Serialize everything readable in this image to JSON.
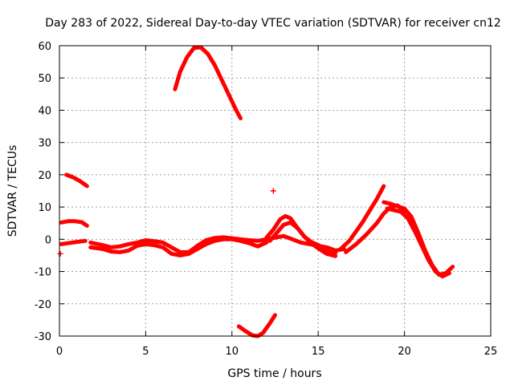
{
  "chart_data": {
    "type": "scatter",
    "title": "Day 283 of 2022, Sidereal Day-to-day VTEC variation (SDTVAR) for receiver cn12",
    "xlabel": "GPS time / hours",
    "ylabel": "SDTVAR / TECUs",
    "xlim": [
      0,
      25
    ],
    "ylim": [
      -30,
      60
    ],
    "xticks": [
      "0",
      "5",
      "10",
      "15",
      "20",
      "25"
    ],
    "yticks": [
      "-30",
      "-20",
      "-10",
      "0",
      "10",
      "20",
      "30",
      "40",
      "50",
      "60"
    ],
    "grid": true,
    "color": "#ff0000",
    "marker": "plus",
    "series": [
      {
        "name": "arc-high-peak",
        "x": [
          6.7,
          7.0,
          7.4,
          7.8,
          8.2,
          8.6,
          9.0,
          9.4,
          9.8,
          10.2,
          10.5
        ],
        "y": [
          46.5,
          52,
          56.5,
          59.3,
          59.5,
          57.5,
          54,
          49.5,
          45,
          40.5,
          37.5
        ]
      },
      {
        "name": "arc-low-dip",
        "x": [
          10.4,
          10.8,
          11.2,
          11.5,
          11.8,
          12.2,
          12.5
        ],
        "y": [
          -27,
          -28.5,
          -29.8,
          -30,
          -29,
          -26,
          -23.5
        ]
      },
      {
        "name": "arc-early-20",
        "x": [
          0.4,
          0.8,
          1.2,
          1.6
        ],
        "y": [
          20,
          19.2,
          18,
          16.5
        ]
      },
      {
        "name": "arc-early-5",
        "x": [
          0.1,
          0.5,
          0.9,
          1.3,
          1.6
        ],
        "y": [
          5.2,
          5.6,
          5.6,
          5.3,
          4.2
        ]
      },
      {
        "name": "arc-early-0",
        "x": [
          0.1,
          0.5,
          1.0,
          1.5
        ],
        "y": [
          -1.5,
          -1.2,
          -0.8,
          -0.5
        ]
      },
      {
        "name": "arc-main-1",
        "x": [
          1.8,
          2.5,
          3.0,
          3.5,
          4.0,
          4.5,
          5.0,
          5.5,
          6.0,
          6.5,
          7.0,
          7.5,
          8.0,
          8.5,
          9.0,
          9.5,
          10.0,
          10.5,
          11.0,
          11.5,
          12.0,
          12.5,
          13.0,
          13.5,
          14.0,
          14.5,
          15.0,
          15.5,
          16.0,
          16.5
        ],
        "y": [
          -1,
          -1.8,
          -2.5,
          -2.2,
          -1.5,
          -1,
          -0.3,
          -0.6,
          -1,
          -2.5,
          -4,
          -4,
          -2,
          -0.3,
          0.4,
          0.6,
          0.3,
          0,
          -0.3,
          -0.5,
          0,
          0.5,
          1,
          0,
          -1,
          -1.5,
          -2,
          -2.5,
          -3.5,
          -3
        ]
      },
      {
        "name": "arc-main-2",
        "x": [
          1.8,
          2.5,
          3.0,
          3.5,
          4.0,
          4.5,
          5.0,
          5.5,
          6.0,
          6.5,
          7.0,
          7.5,
          8.0,
          8.5,
          9.0,
          9.5,
          10.0,
          10.5,
          11.0,
          11.5,
          12.0
        ],
        "y": [
          -2.5,
          -3,
          -3.8,
          -4,
          -3.5,
          -2,
          -1.5,
          -1.8,
          -2.5,
          -4.5,
          -5,
          -4.5,
          -3,
          -1.5,
          -0.5,
          0,
          0,
          -0.5,
          -1.2,
          -2.2,
          -1
        ]
      },
      {
        "name": "arc-bump-13",
        "x": [
          12.0,
          12.4,
          12.8,
          13.1,
          13.4,
          13.8,
          14.2,
          14.6,
          15.0,
          15.5,
          16.0
        ],
        "y": [
          0.5,
          3,
          6.2,
          7.2,
          6.5,
          3.5,
          0.8,
          -0.8,
          -1.8,
          -3.2,
          -4.2
        ]
      },
      {
        "name": "arc-bump-13b",
        "x": [
          12.2,
          12.6,
          13.0,
          13.4,
          13.8,
          14.2,
          14.6,
          15.0,
          15.5,
          16.0
        ],
        "y": [
          -0.5,
          2,
          4.5,
          5.2,
          3.5,
          0.8,
          -1.2,
          -2.8,
          -4.5,
          -5.2
        ]
      },
      {
        "name": "arc-rise-18",
        "x": [
          16.3,
          16.8,
          17.2,
          17.6,
          18.0,
          18.4,
          18.8
        ],
        "y": [
          -3,
          -0.5,
          2.5,
          5.5,
          9,
          12.5,
          16.5
        ]
      },
      {
        "name": "arc-rise-19",
        "x": [
          16.6,
          17.2,
          17.8,
          18.4,
          18.8,
          19.2,
          19.6,
          20.0
        ],
        "y": [
          -4,
          -1.5,
          1.5,
          5,
          8,
          10,
          10.5,
          8.5
        ]
      },
      {
        "name": "arc-peak-19",
        "x": [
          18.8,
          19.2,
          19.6,
          20.0,
          20.4,
          20.8,
          21.2,
          21.6,
          22.0,
          22.4,
          22.8
        ],
        "y": [
          11.5,
          11,
          10.2,
          9.5,
          7,
          2,
          -3.5,
          -8,
          -11,
          -10.5,
          -8.5
        ]
      },
      {
        "name": "arc-peak-19b",
        "x": [
          19.0,
          19.4,
          19.8,
          20.2,
          20.6,
          21.0,
          21.4,
          21.8,
          22.2,
          22.6
        ],
        "y": [
          9.5,
          9,
          8.5,
          6.5,
          2.5,
          -2,
          -6.5,
          -10,
          -11.5,
          -10.5
        ]
      }
    ],
    "points": [
      {
        "x": 12.4,
        "y": 15
      },
      {
        "x": 0.05,
        "y": -4.5
      }
    ]
  }
}
